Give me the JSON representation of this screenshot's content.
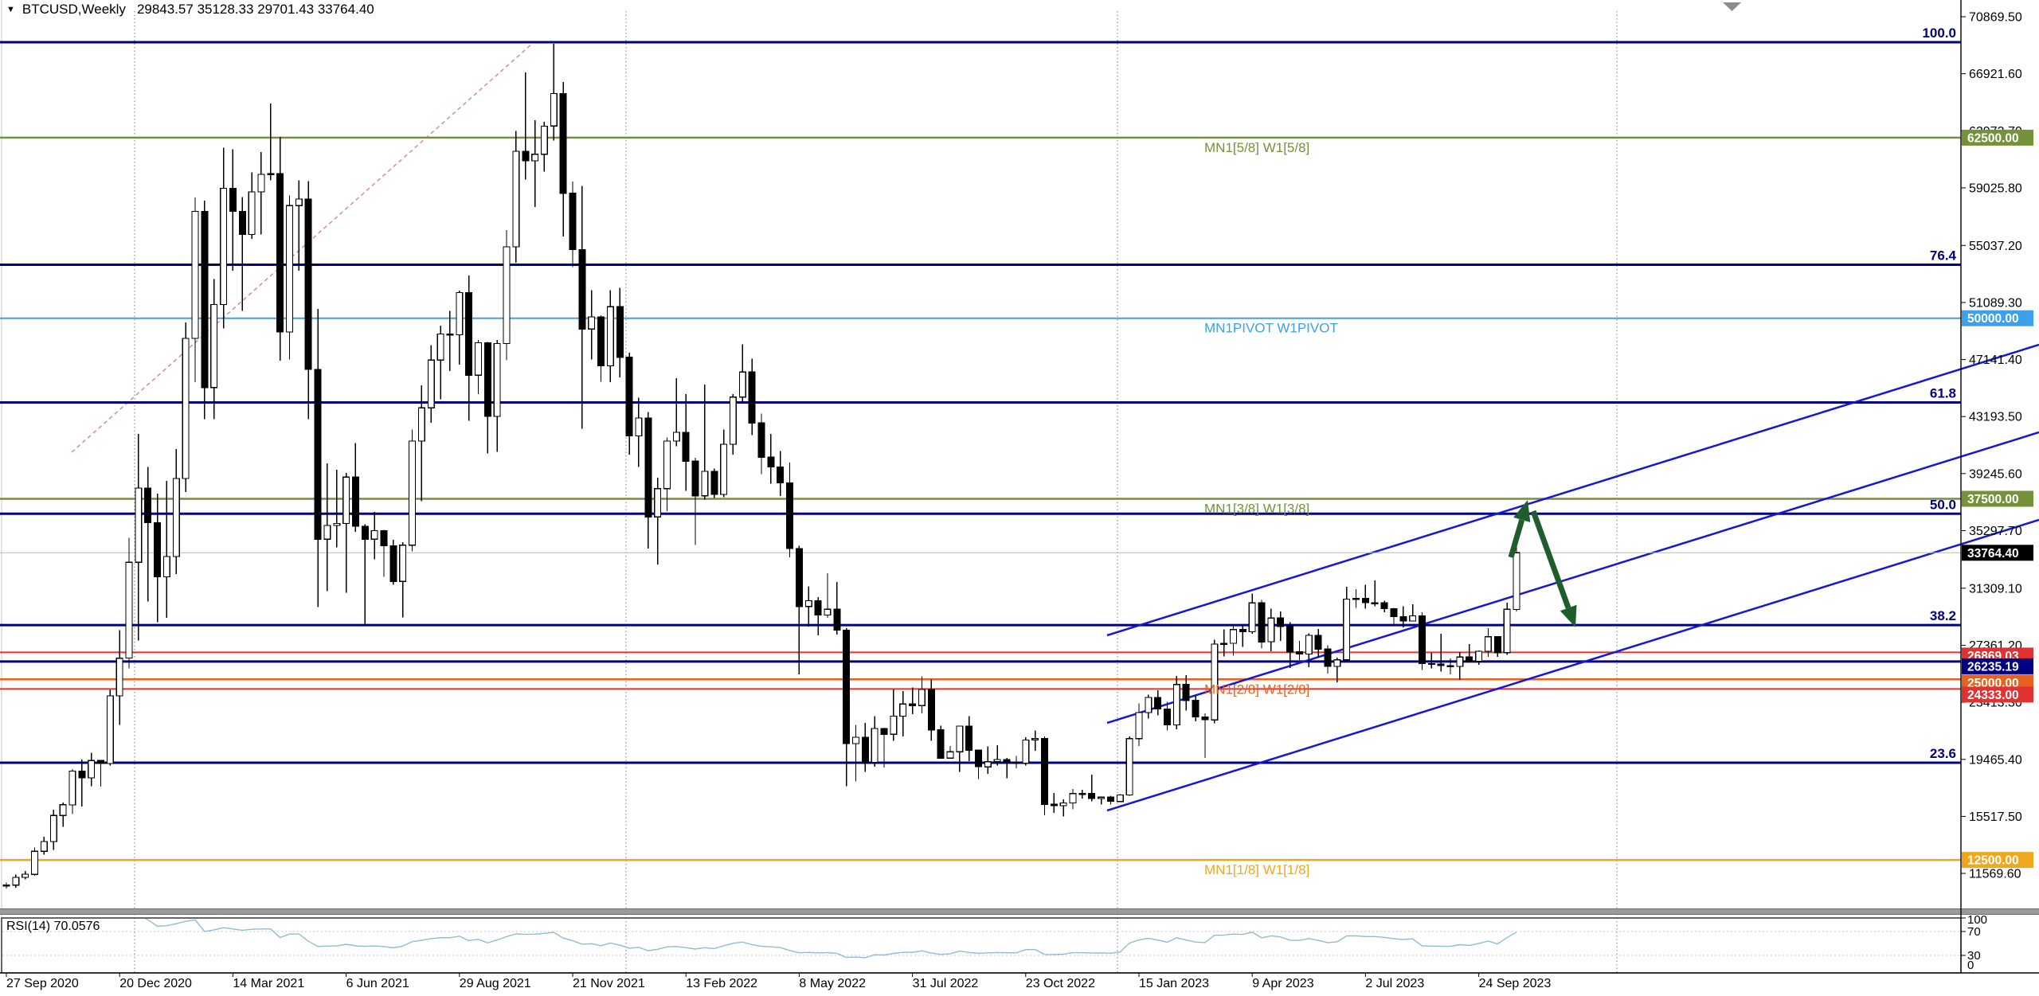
{
  "title": {
    "expand_icon": "▼",
    "symbol_period": "BTCUSD,Weekly",
    "ohlc": "29843.57 35128.33 29701.43 33764.40"
  },
  "colors": {
    "background": "#ffffff",
    "fib_line": "#000080",
    "olive": "#74923a",
    "pivot_blue": "#3da0e8",
    "red": "#e03232",
    "navy_level": "#000080",
    "orange_red": "#e8611f",
    "orange": "#f0a71e",
    "channel_blue": "#1616d8",
    "arrow_green": "#1d5e2c",
    "candle_up_fill": "#ffffff",
    "candle_down_fill": "#000000",
    "candle_border": "#000000",
    "rsi_line": "#8fbdd1",
    "current_price_line": "#b8b8b8",
    "grid_dotted": "#909090",
    "trendline_dotted": "#d48d8d",
    "splitter": "#9a9a9a",
    "axis_text": "#000000"
  },
  "price_axis": {
    "ticks": [
      {
        "label": "70869.50",
        "price": 70869.5
      },
      {
        "label": "66921.60",
        "price": 66921.6
      },
      {
        "label": "62973.70",
        "price": 62973.7
      },
      {
        "label": "59025.80",
        "price": 59025.8
      },
      {
        "label": "55037.20",
        "price": 55037.2
      },
      {
        "label": "51089.30",
        "price": 51089.3
      },
      {
        "label": "47141.40",
        "price": 47141.4
      },
      {
        "label": "43193.50",
        "price": 43193.5
      },
      {
        "label": "39245.60",
        "price": 39245.6
      },
      {
        "label": "35297.70",
        "price": 35297.7
      },
      {
        "label": "31309.10",
        "price": 31309.1
      },
      {
        "label": "27361.20",
        "price": 27361.2
      },
      {
        "label": "23413.30",
        "price": 23413.3
      },
      {
        "label": "19465.40",
        "price": 19465.4
      },
      {
        "label": "15517.50",
        "price": 15517.5
      },
      {
        "label": "11569.60",
        "price": 11569.6
      }
    ],
    "badges": [
      {
        "label": "62500.00",
        "price": 62500,
        "bg": "#74923a"
      },
      {
        "label": "50000.00",
        "price": 50000,
        "bg": "#3da0e8"
      },
      {
        "label": "37500.00",
        "price": 37500,
        "bg": "#74923a"
      },
      {
        "label": "33764.40",
        "price": 33764.4,
        "bg": "#000000"
      },
      {
        "label": "26869.03",
        "price": 26869.03,
        "bg": "#e03232",
        "y_offset": 4
      },
      {
        "label": "26235.19",
        "price": 26235.19,
        "bg": "#000080",
        "y_offset": 6
      },
      {
        "label": "25000.00",
        "price": 25000,
        "bg": "#e8611f",
        "y_offset": 4
      },
      {
        "label": "24333.00",
        "price": 24333,
        "bg": "#e03232",
        "y_offset": 7
      },
      {
        "label": "12500.00",
        "price": 12500,
        "bg": "#f0a71e"
      }
    ]
  },
  "time_axis": {
    "labels": [
      {
        "text": "27 Sep 2020",
        "index": 0
      },
      {
        "text": "20 Dec 2020",
        "index": 12
      },
      {
        "text": "14 Mar 2021",
        "index": 24
      },
      {
        "text": "6 Jun 2021",
        "index": 36
      },
      {
        "text": "29 Aug 2021",
        "index": 48
      },
      {
        "text": "21 Nov 2021",
        "index": 60
      },
      {
        "text": "13 Feb 2022",
        "index": 72
      },
      {
        "text": "8 May 2022",
        "index": 84
      },
      {
        "text": "31 Jul 2022",
        "index": 96
      },
      {
        "text": "23 Oct 2022",
        "index": 108
      },
      {
        "text": "15 Jan 2023",
        "index": 120
      },
      {
        "text": "9 Apr 2023",
        "index": 132
      },
      {
        "text": "2 Jul 2023",
        "index": 144
      },
      {
        "text": "24 Sep 2023",
        "index": 156
      }
    ]
  },
  "fib_levels": [
    {
      "label": "100.0",
      "price": 69106
    },
    {
      "label": "76.4",
      "price": 53700
    },
    {
      "label": "61.8",
      "price": 44169
    },
    {
      "label": "50.0",
      "price": 36466
    },
    {
      "label": "38.2",
      "price": 28762
    },
    {
      "label": "23.6",
      "price": 19231
    }
  ],
  "murrey_levels": [
    {
      "label": "MN1[5/8] W1[5/8]",
      "price": 62500,
      "color": "#74923a",
      "width": 2.5
    },
    {
      "label": "MN1PIVOT W1PIVOT",
      "price": 50000,
      "color": "#3da0e8",
      "width": 2
    },
    {
      "label": "MN1[3/8] W1[3/8]",
      "price": 37500,
      "color": "#74923a",
      "width": 2.5
    },
    {
      "label": "MN1[2/8] W1[2/8]",
      "price": 25000,
      "color": "#e8611f",
      "width": 2.5
    },
    {
      "label": "MN1[1/8] W1[1/8]",
      "price": 12500,
      "color": "#f0a71e",
      "width": 2.5
    }
  ],
  "extra_levels": [
    {
      "price": 26869.03,
      "color": "#e03232",
      "width": 2
    },
    {
      "price": 26235.19,
      "color": "#000080",
      "width": 3
    },
    {
      "price": 24333.0,
      "color": "#e03232",
      "width": 2
    }
  ],
  "current_price": {
    "price": 33764.4,
    "badge": "33764.40"
  },
  "drawings": {
    "channel_lines": [
      [
        1390,
        798,
        2560,
        433
      ],
      [
        1390,
        908,
        2560,
        543
      ],
      [
        1390,
        1018,
        2560,
        653
      ]
    ],
    "dotted_trendline": [
      90,
      568,
      668,
      55
    ],
    "arrow_up": [
      1897,
      700,
      1918,
      628
    ],
    "arrow_down": [
      1925,
      642,
      1978,
      788
    ],
    "year_separators_x": [
      169,
      786,
      1403,
      2030
    ]
  },
  "rsi": {
    "label": "RSI(14) 70.0576",
    "name": "RSI",
    "period": 14,
    "value": 70.0576,
    "levels": [
      70,
      30
    ],
    "scale": [
      {
        "text": "100",
        "v": 100
      },
      {
        "text": "70",
        "v": 70
      },
      {
        "text": "30",
        "v": 30
      },
      {
        "text": "0",
        "v": 0
      }
    ]
  },
  "chart_data": {
    "type": "candlestick",
    "symbol": "BTCUSD",
    "timeframe": "Weekly",
    "title": "BTCUSD,Weekly",
    "ohlc_current": {
      "open": 29843.57,
      "high": 35128.33,
      "low": 29701.43,
      "close": 33764.4
    },
    "ylim": [
      11569.6,
      70869.5
    ],
    "x_tick_labels": [
      "27 Sep 2020",
      "20 Dec 2020",
      "14 Mar 2021",
      "6 Jun 2021",
      "29 Aug 2021",
      "21 Nov 2021",
      "13 Feb 2022",
      "8 May 2022",
      "31 Jul 2022",
      "23 Oct 2022",
      "15 Jan 2023",
      "9 Apr 2023",
      "2 Jul 2023",
      "24 Sep 2023"
    ],
    "candles": [
      [
        10774,
        10950,
        10520,
        10754
      ],
      [
        10754,
        11495,
        10569,
        11296
      ],
      [
        11296,
        11726,
        11169,
        11508
      ],
      [
        11508,
        13360,
        11400,
        13100
      ],
      [
        13100,
        14100,
        12880,
        13780
      ],
      [
        13780,
        15970,
        13190,
        15580
      ],
      [
        15580,
        16480,
        14805,
        16320
      ],
      [
        16320,
        18790,
        15670,
        18650
      ],
      [
        18650,
        19450,
        16200,
        18190
      ],
      [
        18190,
        19920,
        17600,
        19380
      ],
      [
        19380,
        19430,
        17570,
        19170
      ],
      [
        19170,
        24280,
        19050,
        23860
      ],
      [
        23860,
        28420,
        21850,
        26470
      ],
      [
        26470,
        34800,
        25750,
        33100
      ],
      [
        33100,
        41980,
        27700,
        38250
      ],
      [
        38250,
        39700,
        30400,
        35850
      ],
      [
        35850,
        37850,
        28950,
        32100
      ],
      [
        32100,
        38750,
        29250,
        33500
      ],
      [
        33500,
        40950,
        32300,
        38900
      ],
      [
        38900,
        49700,
        37980,
        48600
      ],
      [
        48600,
        58350,
        45570,
        57400
      ],
      [
        57400,
        58150,
        43000,
        45200
      ],
      [
        45200,
        52700,
        43000,
        50950
      ],
      [
        50950,
        61800,
        49300,
        59000
      ],
      [
        59000,
        61700,
        53300,
        57400
      ],
      [
        57400,
        58400,
        50500,
        55800
      ],
      [
        55800,
        60100,
        55500,
        58750
      ],
      [
        58750,
        61500,
        55800,
        59950
      ],
      [
        59950,
        64850,
        59550,
        60000
      ],
      [
        60000,
        62550,
        47050,
        49050
      ],
      [
        49050,
        58500,
        47150,
        57800
      ],
      [
        57800,
        59550,
        53300,
        58250
      ],
      [
        58250,
        59500,
        43000,
        46450
      ],
      [
        46450,
        50650,
        30000,
        34700
      ],
      [
        34700,
        39950,
        31100,
        35650
      ],
      [
        35650,
        39500,
        34150,
        35800
      ],
      [
        35800,
        39300,
        31000,
        39000
      ],
      [
        39000,
        41350,
        35200,
        35600
      ],
      [
        35600,
        35750,
        28800,
        34700
      ],
      [
        34700,
        36600,
        33300,
        35300
      ],
      [
        35300,
        35350,
        32100,
        34250
      ],
      [
        34250,
        34650,
        31550,
        31780
      ],
      [
        31780,
        34500,
        29300,
        34290
      ],
      [
        34290,
        42300,
        33850,
        41500
      ],
      [
        41500,
        45350,
        37330,
        43800
      ],
      [
        43800,
        48150,
        42750,
        47100
      ],
      [
        47100,
        49500,
        44400,
        48900
      ],
      [
        48900,
        50500,
        46350,
        48850
      ],
      [
        48850,
        51900,
        46800,
        51780
      ],
      [
        51780,
        52950,
        42900,
        46050
      ],
      [
        46050,
        48500,
        44750,
        48300
      ],
      [
        48300,
        48350,
        40650,
        43200
      ],
      [
        43200,
        48500,
        40750,
        48250
      ],
      [
        48250,
        56100,
        47100,
        54950
      ],
      [
        54950,
        62950,
        53850,
        61550
      ],
      [
        61550,
        67000,
        59600,
        60900
      ],
      [
        60900,
        63700,
        57700,
        61350
      ],
      [
        61350,
        63600,
        60150,
        63300
      ],
      [
        63300,
        69000,
        62300,
        65550
      ],
      [
        65550,
        66350,
        55650,
        58650
      ],
      [
        58650,
        59450,
        53550,
        54750
      ],
      [
        54750,
        59150,
        42350,
        49250
      ],
      [
        49250,
        51950,
        47150,
        50100
      ],
      [
        50100,
        50200,
        45600,
        46700
      ],
      [
        46700,
        51950,
        45580,
        50800
      ],
      [
        50800,
        52100,
        45900,
        47300
      ],
      [
        47300,
        47600,
        40550,
        41850
      ],
      [
        41850,
        44500,
        39700,
        43100
      ],
      [
        43100,
        43500,
        34050,
        36250
      ],
      [
        36250,
        38950,
        32950,
        38200
      ],
      [
        38200,
        41750,
        36650,
        41500
      ],
      [
        41500,
        45850,
        41150,
        42100
      ],
      [
        42100,
        44750,
        38050,
        40100
      ],
      [
        40100,
        40350,
        34300,
        37700
      ],
      [
        37700,
        45400,
        37450,
        39400
      ],
      [
        39400,
        39600,
        37550,
        37800
      ],
      [
        37800,
        42300,
        37600,
        41280
      ],
      [
        41280,
        44750,
        40550,
        44540
      ],
      [
        44540,
        48200,
        44200,
        46280
      ],
      [
        46280,
        47200,
        41900,
        42750
      ],
      [
        42750,
        43400,
        39200,
        40380
      ],
      [
        40380,
        42000,
        38550,
        39700
      ],
      [
        39700,
        40800,
        37700,
        38600
      ],
      [
        38600,
        40000,
        33450,
        34050
      ],
      [
        34050,
        34240,
        25350,
        30050
      ],
      [
        30050,
        31450,
        28650,
        30450
      ],
      [
        30450,
        30700,
        28050,
        29450
      ],
      [
        29450,
        32350,
        29250,
        29850
      ],
      [
        29850,
        31750,
        28100,
        28400
      ],
      [
        28400,
        28550,
        17600,
        20550
      ],
      [
        20550,
        21850,
        17950,
        21000
      ],
      [
        21000,
        22000,
        18600,
        19250
      ],
      [
        19250,
        22450,
        18950,
        21600
      ],
      [
        21600,
        21650,
        18900,
        21200
      ],
      [
        21200,
        24300,
        20750,
        22450
      ],
      [
        22450,
        24200,
        21050,
        23300
      ],
      [
        23300,
        24450,
        22600,
        23180
      ],
      [
        23180,
        25200,
        22650,
        24300
      ],
      [
        24300,
        25000,
        20750,
        21500
      ],
      [
        21500,
        21800,
        19500,
        19550
      ],
      [
        19550,
        20400,
        19520,
        19990
      ],
      [
        19990,
        21800,
        18600,
        21770
      ],
      [
        21770,
        22450,
        19350,
        20100
      ],
      [
        20100,
        20150,
        18100,
        18950
      ],
      [
        18950,
        20350,
        18450,
        19300
      ],
      [
        19300,
        20450,
        19050,
        19450
      ],
      [
        19450,
        19550,
        18150,
        19250
      ],
      [
        19250,
        19700,
        18850,
        19200
      ],
      [
        19200,
        21000,
        19050,
        20800
      ],
      [
        20800,
        21450,
        20050,
        20900
      ],
      [
        20900,
        21050,
        15600,
        16350
      ],
      [
        16350,
        17150,
        15750,
        16250
      ],
      [
        16250,
        16700,
        15500,
        16450
      ],
      [
        16450,
        17400,
        16000,
        17100
      ],
      [
        17100,
        17350,
        16750,
        17100
      ],
      [
        17100,
        18400,
        16550,
        16750
      ],
      [
        16750,
        16900,
        16350,
        16850
      ],
      [
        16850,
        16950,
        16350,
        16550
      ],
      [
        16550,
        17050,
        16500,
        17000
      ],
      [
        17000,
        21050,
        16950,
        20900
      ],
      [
        20900,
        23350,
        20400,
        22700
      ],
      [
        22700,
        23950,
        22300,
        23750
      ],
      [
        23750,
        24250,
        22500,
        22950
      ],
      [
        22950,
        23450,
        21450,
        21850
      ],
      [
        21850,
        25250,
        21550,
        24650
      ],
      [
        24650,
        25300,
        22850,
        23550
      ],
      [
        23550,
        23900,
        22100,
        22400
      ],
      [
        22400,
        22650,
        19550,
        22200
      ],
      [
        22200,
        27750,
        21950,
        27450
      ],
      [
        27450,
        28450,
        26600,
        27500
      ],
      [
        27500,
        28800,
        26650,
        28450
      ],
      [
        28450,
        28750,
        27250,
        28300
      ],
      [
        28300,
        30950,
        28150,
        30300
      ],
      [
        30300,
        30500,
        27150,
        27600
      ],
      [
        27600,
        29900,
        26950,
        29250
      ],
      [
        29250,
        29700,
        27650,
        28650
      ],
      [
        28650,
        28950,
        25800,
        26900
      ],
      [
        26900,
        27650,
        26350,
        26750
      ],
      [
        26750,
        28200,
        25850,
        28050
      ],
      [
        28050,
        28500,
        26500,
        27100
      ],
      [
        27100,
        27350,
        25400,
        25900
      ],
      [
        25900,
        26500,
        24800,
        26350
      ],
      [
        26350,
        31400,
        26250,
        30550
      ],
      [
        30550,
        31250,
        29950,
        30600
      ],
      [
        30600,
        31550,
        29900,
        30300
      ],
      [
        30300,
        31850,
        30050,
        30300
      ],
      [
        30300,
        30450,
        29650,
        29900
      ],
      [
        29900,
        29950,
        28850,
        29350
      ],
      [
        29350,
        30050,
        28600,
        29050
      ],
      [
        29050,
        30200,
        29050,
        29400
      ],
      [
        29400,
        29650,
        25650,
        26100
      ],
      [
        26100,
        26850,
        25750,
        26050
      ],
      [
        26050,
        28150,
        25550,
        25950
      ],
      [
        25950,
        26450,
        25350,
        25900
      ],
      [
        25900,
        26900,
        24950,
        26550
      ],
      [
        26550,
        27450,
        26200,
        26250
      ],
      [
        26250,
        27000,
        26000,
        26950
      ],
      [
        26950,
        28550,
        26550,
        27950
      ],
      [
        27950,
        27990,
        26550,
        26850
      ],
      [
        26850,
        30300,
        26700,
        29850
      ],
      [
        29843.57,
        35128.33,
        29701.43,
        33764.4
      ]
    ],
    "indicator": {
      "name": "RSI",
      "period": 14,
      "value": 70.0576,
      "levels": [
        70,
        30
      ],
      "range": [
        0,
        100
      ]
    }
  }
}
